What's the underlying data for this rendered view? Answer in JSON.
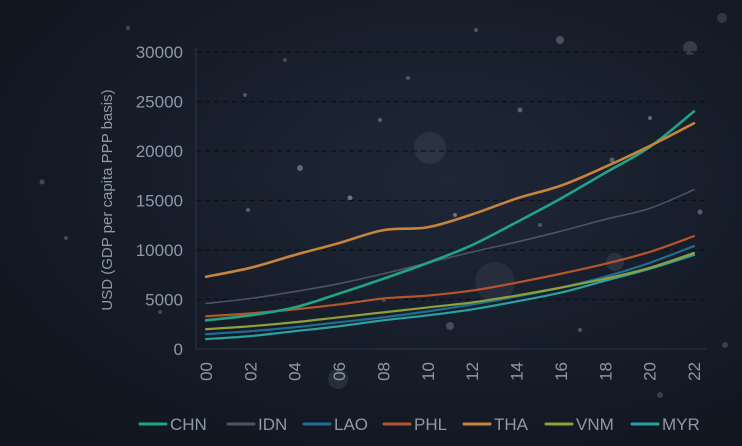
{
  "chart_data": {
    "type": "line",
    "title": "",
    "xlabel": "",
    "ylabel": "USD (GDP per capita PPP basis)",
    "xlim": [
      0,
      22
    ],
    "ylim": [
      0,
      30000
    ],
    "yticks": [
      0,
      5000,
      10000,
      15000,
      20000,
      25000,
      30000
    ],
    "xticks": [
      "00",
      "02",
      "04",
      "06",
      "08",
      "10",
      "12",
      "14",
      "16",
      "18",
      "20",
      "22"
    ],
    "grid": true,
    "legend_position": "bottom",
    "x": [
      0,
      2,
      4,
      6,
      8,
      10,
      12,
      14,
      16,
      18,
      20,
      22
    ],
    "series": [
      {
        "name": "CHN",
        "color": "#1fa584",
        "width": 2.6,
        "values": [
          2900,
          3400,
          4200,
          5600,
          7100,
          8700,
          10500,
          12800,
          15200,
          17800,
          20400,
          24000
        ]
      },
      {
        "name": "IDN",
        "color": "#4b5366",
        "width": 1.6,
        "values": [
          4600,
          5100,
          5800,
          6600,
          7600,
          8700,
          9800,
          10800,
          11900,
          13100,
          14200,
          16100
        ]
      },
      {
        "name": "LAO",
        "color": "#1f6d94",
        "width": 2.2,
        "values": [
          1500,
          1800,
          2200,
          2700,
          3200,
          3800,
          4500,
          5300,
          6200,
          7300,
          8700,
          10400
        ]
      },
      {
        "name": "PHL",
        "color": "#b5552a",
        "width": 2.2,
        "values": [
          3300,
          3600,
          4000,
          4500,
          5100,
          5400,
          5900,
          6700,
          7600,
          8600,
          9800,
          11400
        ]
      },
      {
        "name": "THA",
        "color": "#c8833e",
        "width": 2.6,
        "values": [
          7300,
          8200,
          9500,
          10700,
          12000,
          12300,
          13600,
          15200,
          16500,
          18400,
          20500,
          22800
        ]
      },
      {
        "name": "VNM",
        "color": "#8da13b",
        "width": 2.2,
        "values": [
          2000,
          2300,
          2700,
          3200,
          3700,
          4200,
          4700,
          5400,
          6200,
          7100,
          8200,
          9700
        ]
      },
      {
        "name": "MYR",
        "color": "#2aa1a1",
        "width": 2.2,
        "values": [
          1000,
          1300,
          1800,
          2300,
          2900,
          3400,
          4000,
          4800,
          5700,
          6900,
          8100,
          9500
        ]
      }
    ]
  }
}
